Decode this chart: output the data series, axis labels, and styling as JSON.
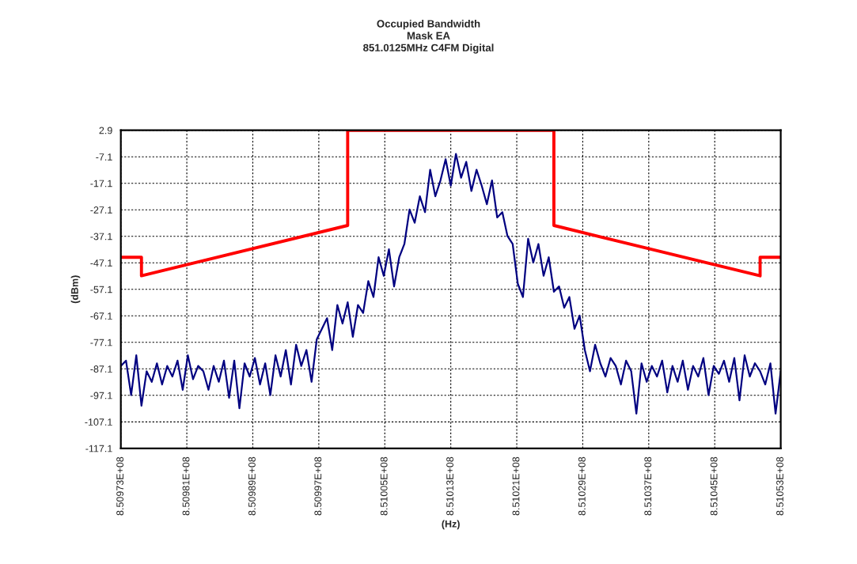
{
  "chart_data": {
    "type": "line",
    "title": "Occupied Bandwidth\nMask EA\n851.0125MHz C4FM Digital",
    "xlabel": "(Hz)",
    "ylabel": "(dBm)",
    "xlim": [
      850973000,
      851053000
    ],
    "xticks": [
      {
        "value": 850973000,
        "label": "8.50973E+08"
      },
      {
        "value": 850981000,
        "label": "8.50981E+08"
      },
      {
        "value": 850989000,
        "label": "8.50989E+08"
      },
      {
        "value": 850997000,
        "label": "8.50997E+08"
      },
      {
        "value": 851005000,
        "label": "8.51005E+08"
      },
      {
        "value": 851013000,
        "label": "8.51013E+08"
      },
      {
        "value": 851021000,
        "label": "8.51021E+08"
      },
      {
        "value": 851029000,
        "label": "8.51029E+08"
      },
      {
        "value": 851037000,
        "label": "8.51037E+08"
      },
      {
        "value": 851045000,
        "label": "8.51045E+08"
      },
      {
        "value": 851053000,
        "label": "8.51053E+08"
      }
    ],
    "ylim": [
      -117.1,
      2.9
    ],
    "yticks": [
      -117.1,
      -107.1,
      -97.1,
      -87.1,
      -77.1,
      -67.1,
      -57.1,
      -47.1,
      -37.1,
      -27.1,
      -17.1,
      -7.1,
      2.9
    ],
    "grid": true,
    "legend": false,
    "marker": "none",
    "line_style": "solid",
    "series": [
      {
        "color": "#ff0000",
        "x": [
          850973000,
          850975500,
          850975500,
          851000500,
          851000500,
          851025500,
          851025500,
          851050500,
          851050500,
          851053000
        ],
        "values": [
          -45,
          -45,
          -52,
          -33,
          2.9,
          2.9,
          -33,
          -52,
          -45,
          -45
        ]
      },
      {
        "color": "#000080",
        "x": [
          850973000,
          850973625,
          850974250,
          850974875,
          850975500,
          850976125,
          850976750,
          850977375,
          850978000,
          850978625,
          850979250,
          850979875,
          850980500,
          850981125,
          850981750,
          850982375,
          850983000,
          850983625,
          850984250,
          850984875,
          850985500,
          850986125,
          850986750,
          850987375,
          850988000,
          850988625,
          850989250,
          850989875,
          850990500,
          850991125,
          850991750,
          850992375,
          850993000,
          850993625,
          850994250,
          850994875,
          850995500,
          850996125,
          850996750,
          850997375,
          850998000,
          850998625,
          850999250,
          850999875,
          851000500,
          851001125,
          851001750,
          851002375,
          851003000,
          851003625,
          851004250,
          851004875,
          851005500,
          851006125,
          851006750,
          851007375,
          851008000,
          851008625,
          851009250,
          851009875,
          851010500,
          851011125,
          851011750,
          851012375,
          851013000,
          851013625,
          851014250,
          851014875,
          851015500,
          851016125,
          851016750,
          851017375,
          851018000,
          851018625,
          851019250,
          851019875,
          851020500,
          851021125,
          851021750,
          851022375,
          851023000,
          851023625,
          851024250,
          851024875,
          851025500,
          851026125,
          851026750,
          851027375,
          851028000,
          851028625,
          851029250,
          851029875,
          851030500,
          851031125,
          851031750,
          851032375,
          851033000,
          851033625,
          851034250,
          851034875,
          851035500,
          851036125,
          851036750,
          851037375,
          851038000,
          851038625,
          851039250,
          851039875,
          851040500,
          851041125,
          851041750,
          851042375,
          851043000,
          851043625,
          851044250,
          851044875,
          851045500,
          851046125,
          851046750,
          851047375,
          851048000,
          851048625,
          851049250,
          851049875,
          851050500,
          851051125,
          851051750,
          851052375,
          851053000
        ],
        "values": [
          -86,
          -84,
          -97,
          -82,
          -101,
          -88,
          -92,
          -85,
          -93,
          -86,
          -90,
          -84,
          -95,
          -82,
          -91,
          -86,
          -88,
          -95,
          -86,
          -92,
          -84,
          -98,
          -84,
          -102,
          -85,
          -90,
          -83,
          -93,
          -85,
          -97,
          -82,
          -90,
          -80,
          -93,
          -78,
          -86,
          -80,
          -92,
          -76,
          -72,
          -68,
          -80,
          -63,
          -70,
          -62,
          -75,
          -63,
          -66,
          -54,
          -60,
          -45,
          -52,
          -42,
          -56,
          -45,
          -40,
          -27,
          -32,
          -22,
          -28,
          -12,
          -22,
          -16,
          -8,
          -18,
          -6,
          -15,
          -9,
          -20,
          -12,
          -18,
          -25,
          -16,
          -30,
          -28,
          -37,
          -40,
          -55,
          -60,
          -38,
          -47,
          -40,
          -52,
          -45,
          -58,
          -56,
          -64,
          -60,
          -72,
          -67,
          -80,
          -88,
          -78,
          -85,
          -90,
          -83,
          -86,
          -93,
          -84,
          -88,
          -104,
          -85,
          -92,
          -86,
          -90,
          -84,
          -96,
          -86,
          -92,
          -84,
          -95,
          -86,
          -90,
          -83,
          -97,
          -86,
          -89,
          -84,
          -92,
          -83,
          -99,
          -82,
          -90,
          -85,
          -88,
          -93,
          -85,
          -104,
          -88
        ]
      }
    ]
  }
}
